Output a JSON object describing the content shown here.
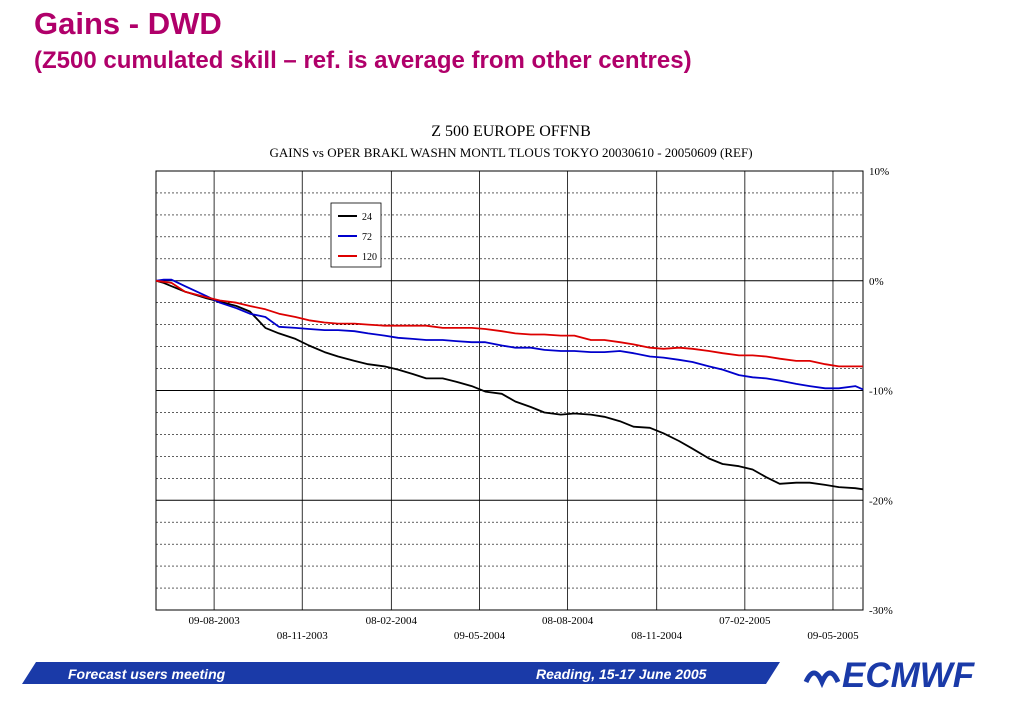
{
  "slide": {
    "title": "Gains - DWD",
    "subtitle": "(Z500 cumulated skill – ref. is average from other centres)"
  },
  "footer": {
    "left": "Forecast users meeting",
    "right": "Reading, 15-17 June 2005",
    "logo_text": "ECMWF"
  },
  "colors": {
    "title": "#b0006a",
    "footer_bar": "#1a3aa8",
    "series_24": "#000000",
    "series_72": "#0000cc",
    "series_120": "#dd0000"
  },
  "chart_data": {
    "type": "line",
    "title": "Z 500 EUROPE OFFNB",
    "subtitle": "GAINS vs OPER BRAKL WASHN MONTL TLOUS TOKYO 20030610 - 20050609 (REF)",
    "xlabel": "",
    "ylabel": "",
    "x_range": [
      "10-06-2003",
      "09-06-2005"
    ],
    "ylim": [
      -30,
      10
    ],
    "y_ticks": [
      10,
      0,
      -10,
      -20,
      -30
    ],
    "y_tick_labels": [
      "10%",
      "0%",
      "-10%",
      "-20%",
      "-30%"
    ],
    "x_tick_labels_row1": [
      "09-08-2003",
      "08-02-2004",
      "08-08-2004",
      "07-02-2005"
    ],
    "x_tick_labels_row2": [
      "08-11-2003",
      "09-05-2004",
      "08-11-2004",
      "09-05-2005"
    ],
    "grid": true,
    "legend_position": "top-left",
    "x_dates": [
      "10-06-2003",
      "18-06-2003",
      "26-06-2003",
      "10-07-2003",
      "01-08-2003",
      "15-08-2003",
      "01-09-2003",
      "15-09-2003",
      "01-10-2003",
      "15-10-2003",
      "01-11-2003",
      "15-11-2003",
      "01-12-2003",
      "15-12-2003",
      "01-01-2004",
      "15-01-2004",
      "01-02-2004",
      "15-02-2004",
      "01-03-2004",
      "15-03-2004",
      "01-04-2004",
      "15-04-2004",
      "01-05-2004",
      "15-05-2004",
      "01-06-2004",
      "15-06-2004",
      "01-07-2004",
      "15-07-2004",
      "01-08-2004",
      "15-08-2004",
      "01-09-2004",
      "15-09-2004",
      "01-10-2004",
      "15-10-2004",
      "01-11-2004",
      "15-11-2004",
      "01-12-2004",
      "15-12-2004",
      "01-01-2005",
      "15-01-2005",
      "01-02-2005",
      "15-02-2005",
      "01-03-2005",
      "15-03-2005",
      "01-04-2005",
      "15-04-2005",
      "01-05-2005",
      "15-05-2005",
      "01-06-2005",
      "09-06-2005"
    ],
    "series": [
      {
        "name": "24",
        "color": "#000000",
        "values": [
          0,
          -0.2,
          -0.5,
          -1.0,
          -1.6,
          -1.9,
          -2.3,
          -2.8,
          -4.3,
          -4.8,
          -5.3,
          -5.9,
          -6.5,
          -6.9,
          -7.3,
          -7.6,
          -7.8,
          -8.1,
          -8.5,
          -8.9,
          -8.9,
          -9.2,
          -9.6,
          -10.1,
          -10.3,
          -11.0,
          -11.5,
          -12.0,
          -12.2,
          -12.1,
          -12.2,
          -12.4,
          -12.8,
          -13.3,
          -13.4,
          -13.9,
          -14.6,
          -15.3,
          -16.2,
          -16.7,
          -16.9,
          -17.2,
          -17.9,
          -18.5,
          -18.4,
          -18.4,
          -18.6,
          -18.8,
          -18.9,
          -19.0
        ]
      },
      {
        "name": "72",
        "color": "#0000cc",
        "values": [
          0,
          0.1,
          0.1,
          -0.5,
          -1.4,
          -2.0,
          -2.5,
          -3.0,
          -3.3,
          -4.2,
          -4.3,
          -4.4,
          -4.5,
          -4.5,
          -4.6,
          -4.8,
          -5.0,
          -5.2,
          -5.3,
          -5.4,
          -5.4,
          -5.5,
          -5.6,
          -5.6,
          -5.9,
          -6.1,
          -6.1,
          -6.3,
          -6.4,
          -6.4,
          -6.5,
          -6.5,
          -6.4,
          -6.6,
          -6.9,
          -7.0,
          -7.2,
          -7.4,
          -7.8,
          -8.1,
          -8.6,
          -8.8,
          -8.9,
          -9.1,
          -9.4,
          -9.6,
          -9.8,
          -9.8,
          -9.6,
          -9.9
        ]
      },
      {
        "name": "120",
        "color": "#dd0000",
        "values": [
          0,
          -0.1,
          -0.2,
          -1.0,
          -1.5,
          -1.8,
          -2.0,
          -2.3,
          -2.6,
          -3.0,
          -3.3,
          -3.6,
          -3.8,
          -3.9,
          -3.9,
          -4.0,
          -4.1,
          -4.1,
          -4.1,
          -4.1,
          -4.3,
          -4.3,
          -4.3,
          -4.4,
          -4.6,
          -4.8,
          -4.9,
          -4.9,
          -5.0,
          -5.0,
          -5.4,
          -5.4,
          -5.6,
          -5.8,
          -6.1,
          -6.2,
          -6.1,
          -6.2,
          -6.4,
          -6.6,
          -6.8,
          -6.8,
          -6.9,
          -7.1,
          -7.3,
          -7.3,
          -7.6,
          -7.8,
          -7.8,
          -7.8
        ]
      }
    ]
  }
}
